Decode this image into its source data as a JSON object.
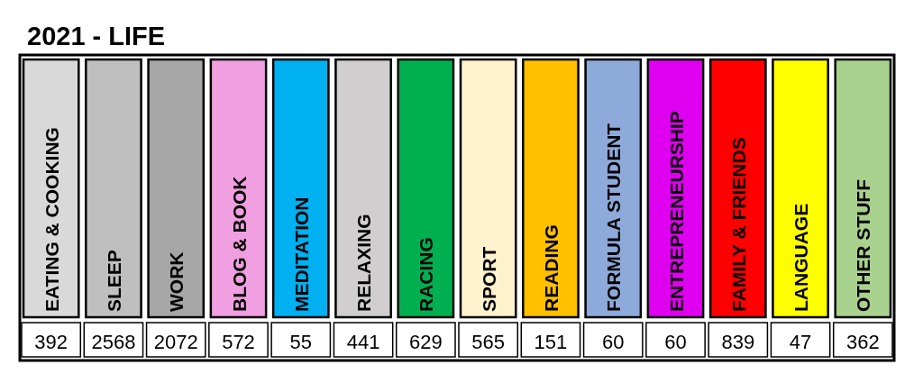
{
  "chart_data": {
    "type": "other",
    "title": "2021 - LIFE",
    "categories": [
      "EATING & COOKING",
      "SLEEP",
      "WORK",
      "BLOG & BOOK",
      "MEDITATION",
      "RELAXING",
      "RACING",
      "SPORT",
      "READING",
      "FORMULA STUDENT",
      "ENTREPRENEURSHIP",
      "FAMILY & FRIENDS",
      "LANGUAGE",
      "OTHER STUFF"
    ],
    "values": [
      392,
      2568,
      2072,
      572,
      55,
      441,
      629,
      565,
      151,
      60,
      60,
      839,
      47,
      362
    ],
    "colors": [
      "#d9d9d9",
      "#bfbfbf",
      "#a6a6a6",
      "#f09fe0",
      "#00b0f0",
      "#d0cece",
      "#00b050",
      "#fff2cc",
      "#ffc000",
      "#8eaadb",
      "#e000f0",
      "#ff0000",
      "#ffff00",
      "#a9d18e"
    ],
    "data_labels": true
  }
}
